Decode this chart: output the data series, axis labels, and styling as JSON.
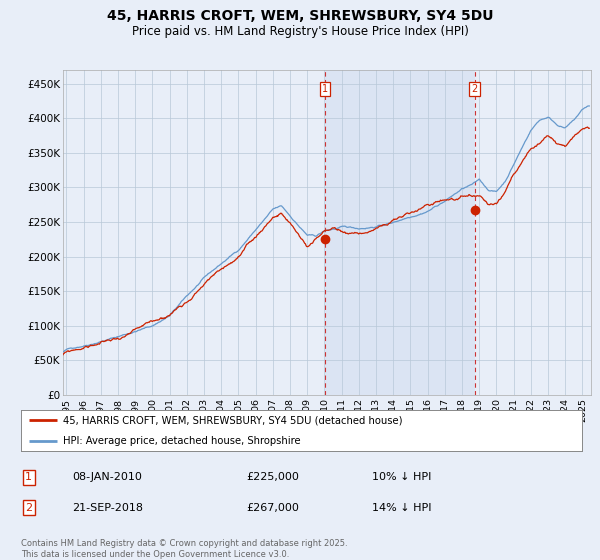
{
  "title": "45, HARRIS CROFT, WEM, SHREWSBURY, SY4 5DU",
  "subtitle": "Price paid vs. HM Land Registry's House Price Index (HPI)",
  "ylabel_ticks": [
    "£0",
    "£50K",
    "£100K",
    "£150K",
    "£200K",
    "£250K",
    "£300K",
    "£350K",
    "£400K",
    "£450K"
  ],
  "ylabel_values": [
    0,
    50000,
    100000,
    150000,
    200000,
    250000,
    300000,
    350000,
    400000,
    450000
  ],
  "ylim": [
    0,
    470000
  ],
  "xlim_start": 1994.8,
  "xlim_end": 2025.5,
  "background_color": "#e8eef8",
  "plot_bg_color": "#e8eef8",
  "hpi_color": "#6699cc",
  "price_color": "#cc2200",
  "vline1_x": 2010.03,
  "vline2_x": 2018.73,
  "vline_color": "#cc3333",
  "marker1_y_data": 225000,
  "marker2_y_data": 267000,
  "legend_line1": "45, HARRIS CROFT, WEM, SHREWSBURY, SY4 5DU (detached house)",
  "legend_line2": "HPI: Average price, detached house, Shropshire",
  "annotation1_num": "1",
  "annotation1_date": "08-JAN-2010",
  "annotation1_price": "£225,000",
  "annotation1_hpi": "10% ↓ HPI",
  "annotation2_num": "2",
  "annotation2_date": "21-SEP-2018",
  "annotation2_price": "£267,000",
  "annotation2_hpi": "14% ↓ HPI",
  "footer": "Contains HM Land Registry data © Crown copyright and database right 2025.\nThis data is licensed under the Open Government Licence v3.0.",
  "title_fontsize": 10,
  "subtitle_fontsize": 8.5
}
